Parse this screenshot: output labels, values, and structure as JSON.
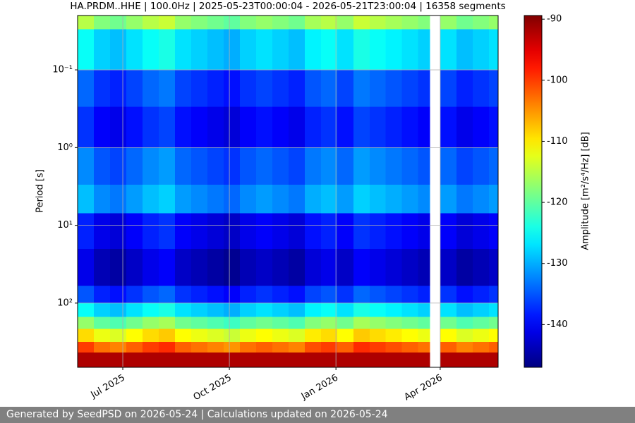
{
  "chart_data": {
    "type": "spectrogram",
    "title": "HA.PRDM..HHE | 100.0Hz | 2025-05-23T00:00:04 - 2026-05-21T23:00:04 | 16358 segments",
    "y_label": "Period [s]",
    "colorbar_label": "Amplitude [m²/s⁴/Hz] [dB]",
    "colormap": "jet",
    "y_log": true,
    "y_inverted": true,
    "grid": true,
    "xlim": [
      "2025-05-23",
      "2026-05-21"
    ],
    "xticks": [
      {
        "value": "2025-07-01",
        "label": "Jul 2025"
      },
      {
        "value": "2025-10-01",
        "label": "Oct 2025"
      },
      {
        "value": "2026-01-01",
        "label": "Jan 2026"
      },
      {
        "value": "2026-04-01",
        "label": "Apr 2026"
      }
    ],
    "ylim": [
      0.02,
      670
    ],
    "yticks": [
      {
        "value": 0.1,
        "label": "10⁻¹"
      },
      {
        "value": 1,
        "label": "10⁰"
      },
      {
        "value": 10,
        "label": "10¹"
      },
      {
        "value": 100,
        "label": "10²"
      }
    ],
    "clim": [
      -147,
      -89.4
    ],
    "cticks": [
      -90,
      -100,
      -110,
      -120,
      -130,
      -140
    ],
    "x_bins": [
      "2025-05-23",
      "2025-06-06",
      "2025-06-20",
      "2025-07-04",
      "2025-07-18",
      "2025-08-01",
      "2025-08-15",
      "2025-08-29",
      "2025-09-12",
      "2025-09-26",
      "2025-10-10",
      "2025-10-24",
      "2025-11-07",
      "2025-11-21",
      "2025-12-05",
      "2025-12-19",
      "2026-01-02",
      "2026-01-16",
      "2026-01-30",
      "2026-02-13",
      "2026-02-27",
      "2026-03-13",
      "2026-03-23",
      "2026-04-01",
      "2026-04-15",
      "2026-04-29",
      "2026-05-13",
      "2026-05-21"
    ],
    "y_bins": [
      0.02,
      0.03,
      0.1,
      0.3,
      1,
      3,
      7,
      20,
      60,
      100,
      150,
      215,
      315,
      430,
      670
    ],
    "values": [
      [
        -115,
        -118,
        -119,
        -117,
        -115,
        -114,
        -117,
        -118,
        -119,
        -120,
        -118,
        -117,
        -118,
        -119,
        -116,
        -115,
        -117,
        -114,
        -115,
        -116,
        -117,
        -118,
        null,
        -117,
        -119,
        -118,
        -117
      ],
      [
        -125,
        -128,
        -129,
        -127,
        -125,
        -124,
        -127,
        -128,
        -129,
        -130,
        -128,
        -127,
        -128,
        -129,
        -126,
        -125,
        -127,
        -124,
        -125,
        -126,
        -127,
        -128,
        null,
        -127,
        -129,
        -128,
        -127
      ],
      [
        -134,
        -137,
        -138,
        -136,
        -134,
        -133,
        -136,
        -137,
        -138,
        -139,
        -137,
        -136,
        -137,
        -138,
        -135,
        -134,
        -136,
        -133,
        -134,
        -135,
        -136,
        -137,
        null,
        -136,
        -138,
        -137,
        -136
      ],
      [
        -137,
        -140,
        -141,
        -139,
        -137,
        -136,
        -139,
        -140,
        -141,
        -142,
        -140,
        -139,
        -140,
        -141,
        -138,
        -137,
        -139,
        -136,
        -137,
        -138,
        -139,
        -140,
        null,
        -139,
        -141,
        -140,
        -139
      ],
      [
        -132,
        -135,
        -136,
        -134,
        -132,
        -131,
        -134,
        -135,
        -136,
        -137,
        -135,
        -134,
        -135,
        -136,
        -133,
        -132,
        -134,
        -131,
        -132,
        -133,
        -134,
        -135,
        null,
        -134,
        -136,
        -135,
        -134
      ],
      [
        -129,
        -132,
        -133,
        -131,
        -129,
        -128,
        -131,
        -132,
        -133,
        -134,
        -132,
        -131,
        -132,
        -133,
        -130,
        -129,
        -131,
        -128,
        -129,
        -130,
        -131,
        -132,
        null,
        -131,
        -133,
        -132,
        -131
      ],
      [
        -138,
        -141,
        -142,
        -140,
        -138,
        -137,
        -140,
        -141,
        -142,
        -143,
        -141,
        -140,
        -141,
        -142,
        -139,
        -138,
        -140,
        -137,
        -138,
        -139,
        -140,
        -141,
        null,
        -140,
        -142,
        -141,
        -140
      ],
      [
        -141,
        -144,
        -145,
        -143,
        -141,
        -140,
        -143,
        -144,
        -145,
        -146,
        -144,
        -143,
        -144,
        -145,
        -142,
        -141,
        -143,
        -140,
        -141,
        -142,
        -143,
        -144,
        null,
        -143,
        -145,
        -144,
        -143
      ],
      [
        -135,
        -138,
        -139,
        -137,
        -135,
        -134,
        -137,
        -138,
        -139,
        -140,
        -138,
        -137,
        -138,
        -139,
        -136,
        -135,
        -137,
        -134,
        -135,
        -136,
        -137,
        -138,
        null,
        -137,
        -139,
        -138,
        -137
      ],
      [
        -125,
        -128,
        -129,
        -127,
        -125,
        -124,
        -127,
        -128,
        -129,
        -130,
        -128,
        -127,
        -128,
        -129,
        -126,
        -125,
        -127,
        -124,
        -125,
        -126,
        -127,
        -128,
        null,
        -127,
        -129,
        -128,
        -127
      ],
      [
        -117,
        -120,
        -121,
        -119,
        -117,
        -116,
        -119,
        -120,
        -121,
        -122,
        -120,
        -119,
        -120,
        -121,
        -118,
        -117,
        -119,
        -116,
        -117,
        -118,
        -119,
        -120,
        null,
        -119,
        -121,
        -120,
        -119
      ],
      [
        -109,
        -112,
        -113,
        -111,
        -109,
        -108,
        -111,
        -112,
        -113,
        -114,
        -112,
        -111,
        -112,
        -113,
        -110,
        -109,
        -111,
        -108,
        -109,
        -110,
        -111,
        -112,
        null,
        -111,
        -113,
        -112,
        -111
      ],
      [
        -100,
        -103,
        -104,
        -102,
        -100,
        -99,
        -102,
        -103,
        -104,
        -105,
        -103,
        -102,
        -103,
        -104,
        -101,
        -100,
        -102,
        -99,
        -100,
        -101,
        -102,
        -103,
        null,
        -102,
        -104,
        -103,
        -102
      ],
      [
        -92,
        -92,
        -92,
        -92,
        -92,
        -92,
        -92,
        -92,
        -92,
        -92,
        -92,
        -92,
        -92,
        -92,
        -92,
        -92,
        -92,
        -92,
        -92,
        -92,
        -92,
        -92,
        null,
        -92,
        -92,
        -92,
        -92
      ]
    ]
  },
  "footer": "Generated by SeedPSD on 2026-05-24 | Calculations updated on 2026-05-24"
}
